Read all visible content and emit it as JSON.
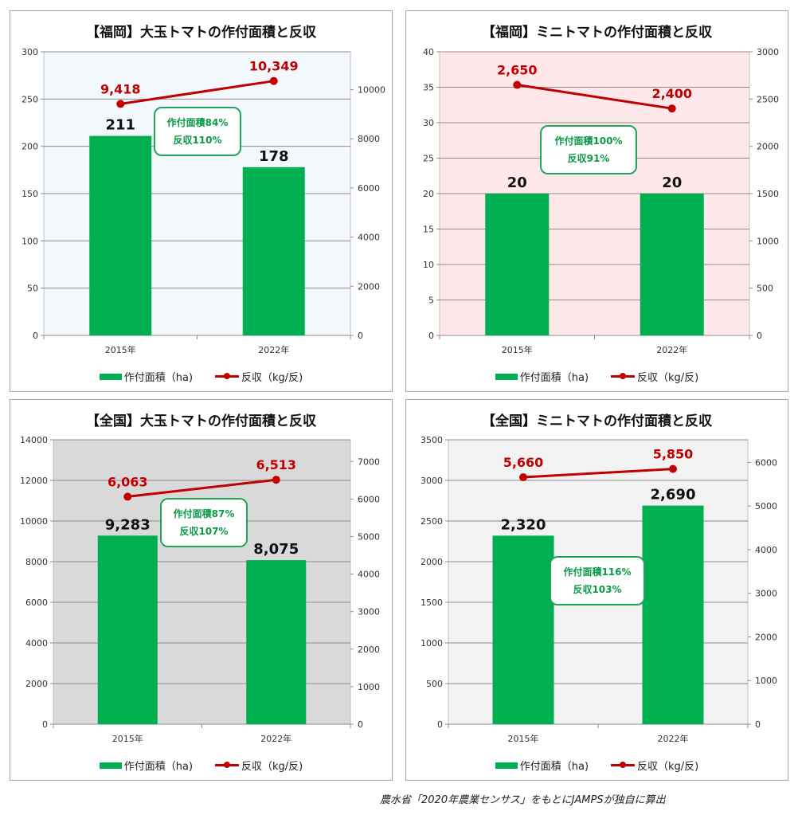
{
  "chart_data": [
    {
      "type": "bar",
      "title": "【福岡】大玉トマトの作付面積と反収",
      "categories": [
        "2015年",
        "2022年"
      ],
      "series": [
        {
          "name": "作付面積（ha)",
          "type": "bar",
          "axis": "left",
          "values": [
            211,
            178
          ],
          "labels": [
            "211",
            "178"
          ]
        },
        {
          "name": "反収（kg/反)",
          "type": "line",
          "axis": "right",
          "values": [
            9418,
            10349
          ],
          "labels": [
            "9,418",
            "10,349"
          ]
        }
      ],
      "ylim": [
        0,
        300
      ],
      "y_ticks": [
        "0",
        "50",
        "100",
        "150",
        "200",
        "250",
        "300"
      ],
      "y2lim": [
        0,
        11538
      ],
      "y2_ticks": [
        "0",
        "2000",
        "4000",
        "6000",
        "8000",
        "10000"
      ],
      "callout": [
        "作付面積84%",
        "反収110%"
      ],
      "plot_bg": "#f3f8fd",
      "grid": true,
      "legend": "bottom"
    },
    {
      "type": "bar",
      "title": "【福岡】ミニトマトの作付面積と反収",
      "categories": [
        "2015年",
        "2022年"
      ],
      "series": [
        {
          "name": "作付面積（ha)",
          "type": "bar",
          "axis": "left",
          "values": [
            20,
            20
          ],
          "labels": [
            "20",
            "20"
          ]
        },
        {
          "name": "反収（kg/反)",
          "type": "line",
          "axis": "right",
          "values": [
            2650,
            2400
          ],
          "labels": [
            "2,650",
            "2,400"
          ]
        }
      ],
      "ylim": [
        0,
        40
      ],
      "y_ticks": [
        "0",
        "5",
        "10",
        "15",
        "20",
        "25",
        "30",
        "35",
        "40"
      ],
      "y2lim": [
        0,
        3000
      ],
      "y2_ticks": [
        "0",
        "500",
        "1000",
        "1500",
        "2000",
        "2500",
        "3000"
      ],
      "callout": [
        "作付面積100%",
        "反収91%"
      ],
      "plot_bg": "#ffe8ea",
      "grid": true,
      "legend": "bottom"
    },
    {
      "type": "bar",
      "title": "【全国】大玉トマトの作付面積と反収",
      "categories": [
        "2015年",
        "2022年"
      ],
      "series": [
        {
          "name": "作付面積（ha)",
          "type": "bar",
          "axis": "left",
          "values": [
            9283,
            8075
          ],
          "labels": [
            "9,283",
            "8,075"
          ]
        },
        {
          "name": "反収（kg/反)",
          "type": "line",
          "axis": "right",
          "values": [
            6063,
            6513
          ],
          "labels": [
            "6,063",
            "6,513"
          ]
        }
      ],
      "ylim": [
        0,
        14000
      ],
      "y_ticks": [
        "0",
        "2000",
        "4000",
        "6000",
        "8000",
        "10000",
        "12000",
        "14000"
      ],
      "y2lim": [
        0,
        7579
      ],
      "y2_ticks": [
        "0",
        "1000",
        "2000",
        "3000",
        "4000",
        "5000",
        "6000",
        "7000"
      ],
      "callout": [
        "作付面積87%",
        "反収107%"
      ],
      "plot_bg": "#d9d9d9",
      "grid": true,
      "legend": "bottom"
    },
    {
      "type": "bar",
      "title": "【全国】ミニトマトの作付面積と反収",
      "categories": [
        "2015年",
        "2022年"
      ],
      "series": [
        {
          "name": "作付面積（ha)",
          "type": "bar",
          "axis": "left",
          "values": [
            2320,
            2690
          ],
          "labels": [
            "2,320",
            "2,690"
          ]
        },
        {
          "name": "反収（kg/反)",
          "type": "line",
          "axis": "right",
          "values": [
            5660,
            5850
          ],
          "labels": [
            "5,660",
            "5,850"
          ]
        }
      ],
      "ylim": [
        0,
        3500
      ],
      "y_ticks": [
        "0",
        "500",
        "1000",
        "1500",
        "2000",
        "2500",
        "3000",
        "3500"
      ],
      "y2lim": [
        0,
        6519
      ],
      "y2_ticks": [
        "0",
        "1000",
        "2000",
        "3000",
        "4000",
        "5000",
        "6000"
      ],
      "callout": [
        "作付面積116%",
        "反収103%"
      ],
      "plot_bg": "#f2f2f2",
      "grid": true,
      "legend": "bottom"
    }
  ],
  "colors": {
    "bar": "#00b050",
    "line": "#c00000",
    "callout_border": "#1fa65a",
    "callout_text": "#0a9a45"
  },
  "source": "農水省「2020年農業センサス」をもとにJAMPSが独自に算出"
}
